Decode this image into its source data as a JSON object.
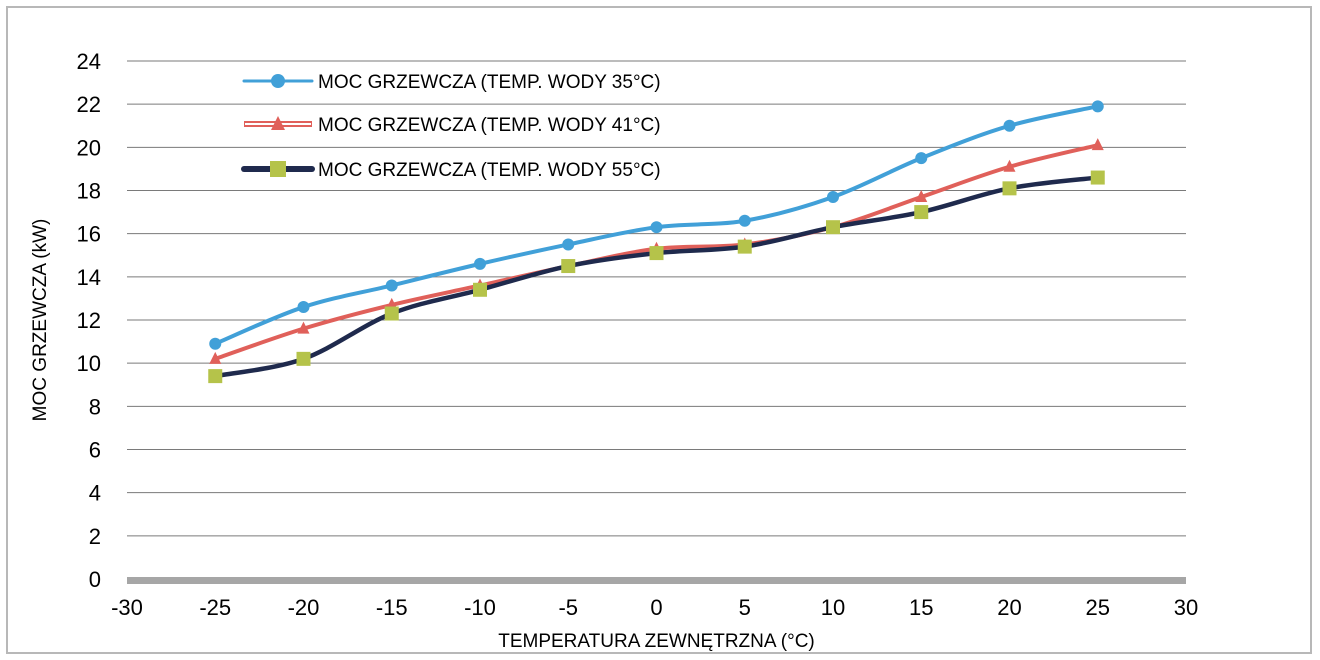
{
  "chart_data": {
    "type": "line",
    "title": "",
    "xlabel": "TEMPERATURA ZEWNĘTRZNA (°C)",
    "ylabel": "MOC GRZEWCZA (kW)",
    "xlim": [
      -30,
      30
    ],
    "ylim": [
      0,
      24
    ],
    "xticks": [
      "-30",
      "-25",
      "-20",
      "-15",
      "-10",
      "-5",
      "0",
      "5",
      "10",
      "15",
      "20",
      "25",
      "30"
    ],
    "yticks": [
      "0",
      "2",
      "4",
      "6",
      "8",
      "10",
      "12",
      "14",
      "16",
      "18",
      "20",
      "22",
      "24"
    ],
    "grid": "horizontal",
    "legend_position": "top-left",
    "x": [
      -25,
      -20,
      -15,
      -10,
      -5,
      0,
      5,
      10,
      15,
      20,
      25
    ],
    "series": [
      {
        "name": "MOC GRZEWCZA (TEMP. WODY 35°C)",
        "color": "#41a0d8",
        "marker": "circle",
        "values": [
          10.9,
          12.6,
          13.6,
          14.6,
          15.5,
          16.3,
          16.6,
          17.7,
          19.5,
          21.0,
          21.9
        ]
      },
      {
        "name": "MOC GRZEWCZA (TEMP. WODY 41°C)",
        "color": "#e0605a",
        "marker": "triangle",
        "values": [
          10.2,
          11.6,
          12.7,
          13.6,
          14.5,
          15.3,
          15.5,
          16.3,
          17.7,
          19.1,
          20.1
        ]
      },
      {
        "name": "MOC GRZEWCZA (TEMP. WODY 55°C)",
        "color": "#1f2a4d",
        "marker_color": "#b5c34a",
        "marker": "square",
        "values": [
          9.4,
          10.2,
          12.3,
          13.4,
          14.5,
          15.1,
          15.4,
          16.3,
          17.0,
          18.1,
          18.6
        ]
      }
    ]
  }
}
